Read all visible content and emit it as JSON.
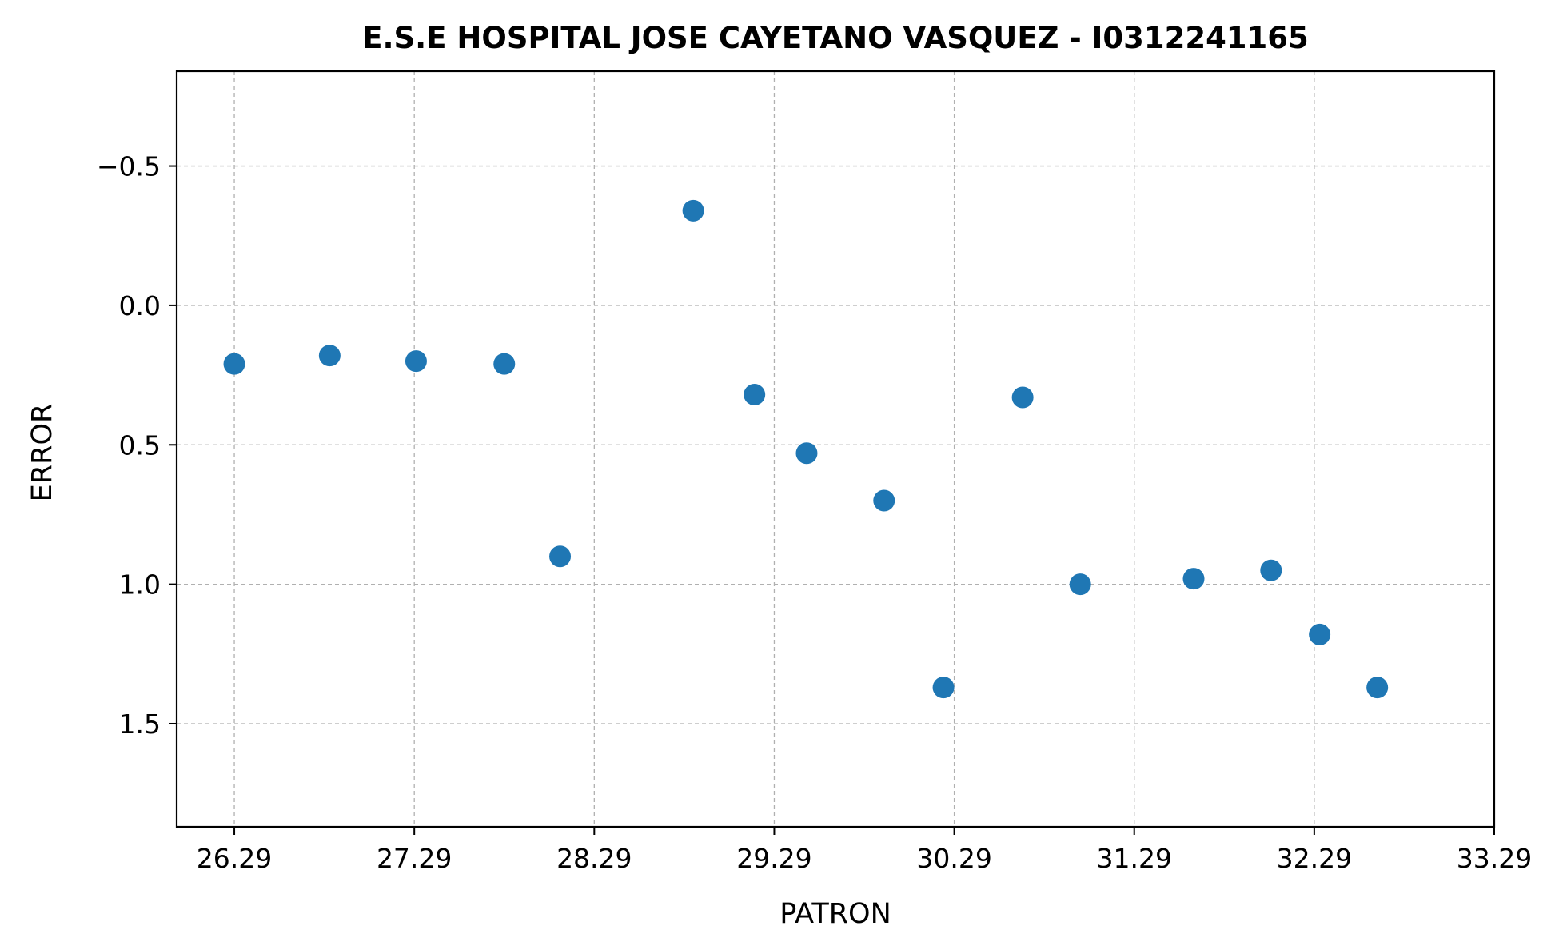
{
  "chart_data": {
    "type": "scatter",
    "title": "E.S.E HOSPITAL JOSE CAYETANO VASQUEZ - I0312241165",
    "xlabel": "PATRON",
    "ylabel": "ERROR",
    "xlim": [
      25.97,
      33.29
    ],
    "ylim": [
      1.87,
      -0.84
    ],
    "y_inverted": true,
    "grid": true,
    "marker_color": "#1f77b4",
    "x_ticks": [
      {
        "value": 26.29,
        "label": "26.29"
      },
      {
        "value": 27.29,
        "label": "27.29"
      },
      {
        "value": 28.29,
        "label": "28.29"
      },
      {
        "value": 29.29,
        "label": "29.29"
      },
      {
        "value": 30.29,
        "label": "30.29"
      },
      {
        "value": 31.29,
        "label": "31.29"
      },
      {
        "value": 32.29,
        "label": "32.29"
      },
      {
        "value": 33.29,
        "label": "33.29"
      }
    ],
    "y_ticks": [
      {
        "value": -0.5,
        "label": "−0.5"
      },
      {
        "value": 0.0,
        "label": "0.0"
      },
      {
        "value": 0.5,
        "label": "0.5"
      },
      {
        "value": 1.0,
        "label": "1.0"
      },
      {
        "value": 1.5,
        "label": "1.5"
      }
    ],
    "points": [
      {
        "x": 26.29,
        "y": 0.21
      },
      {
        "x": 26.82,
        "y": 0.18
      },
      {
        "x": 27.3,
        "y": 0.2
      },
      {
        "x": 27.79,
        "y": 0.21
      },
      {
        "x": 28.1,
        "y": 0.9
      },
      {
        "x": 28.84,
        "y": -0.34
      },
      {
        "x": 29.18,
        "y": 0.32
      },
      {
        "x": 29.47,
        "y": 0.53
      },
      {
        "x": 29.9,
        "y": 0.7
      },
      {
        "x": 30.23,
        "y": 1.37
      },
      {
        "x": 30.67,
        "y": 0.33
      },
      {
        "x": 30.99,
        "y": 1.0
      },
      {
        "x": 31.62,
        "y": 0.98
      },
      {
        "x": 32.05,
        "y": 0.95
      },
      {
        "x": 32.32,
        "y": 1.18
      },
      {
        "x": 32.64,
        "y": 1.37
      }
    ]
  }
}
